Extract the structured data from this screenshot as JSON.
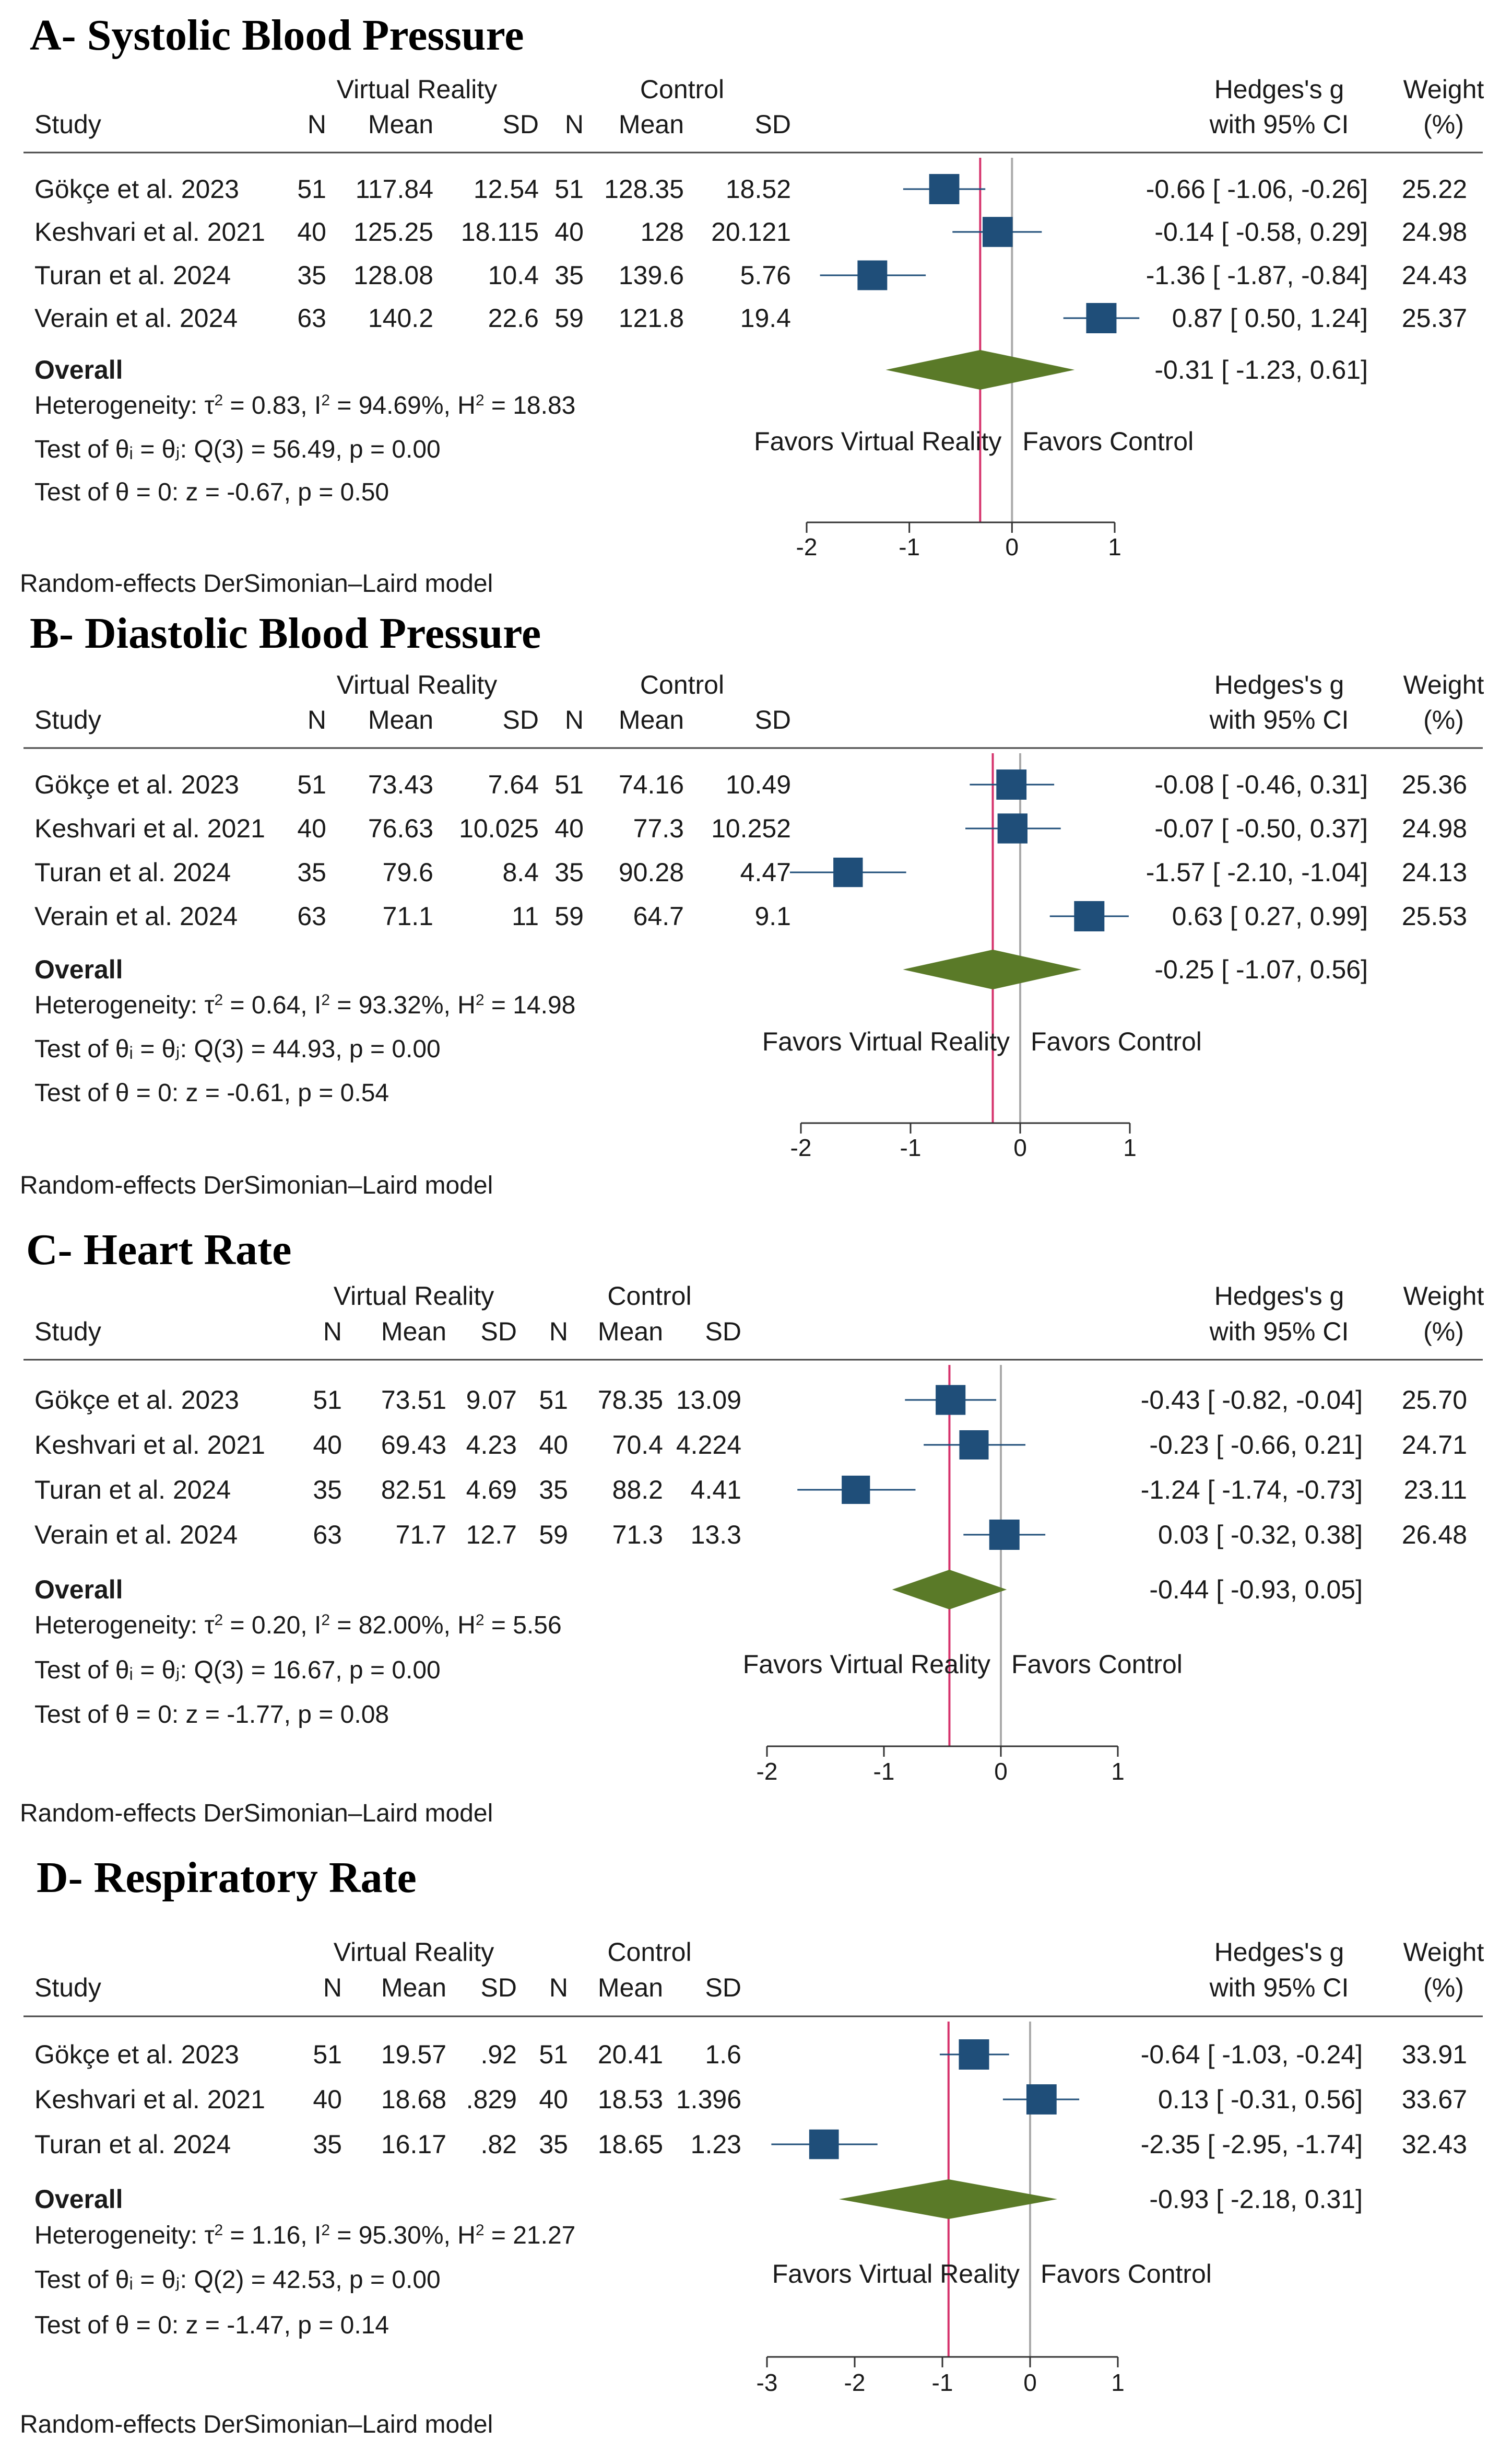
{
  "chart_data": [
    {
      "type": "forest",
      "title": "A- Systolic Blood Pressure",
      "xlim": [
        -2,
        1
      ],
      "xticks": [
        -2,
        -1,
        0,
        1
      ],
      "favors_left": "Favors Virtual Reality",
      "favors_right": "Favors Control",
      "group_vr": "Virtual Reality",
      "group_ctrl": "Control",
      "col_study": "Study",
      "col_n": "N",
      "col_mean": "Mean",
      "col_sd": "SD",
      "col_es1": "Hedges's g",
      "col_es2": "with 95% CI",
      "col_w1": "Weight",
      "col_w2": "(%)",
      "studies": [
        {
          "name": "Gökçe et al. 2023",
          "vr_n": "51",
          "vr_mean": "117.84",
          "vr_sd": "12.54",
          "c_n": "51",
          "c_mean": "128.35",
          "c_sd": "18.52",
          "ci_text": "-0.66 [ -1.06,  -0.26]",
          "weight_text": "25.22",
          "g": -0.66,
          "lo": -1.06,
          "hi": -0.26,
          "w": 25.22
        },
        {
          "name": "Keshvari et al. 2021",
          "vr_n": "40",
          "vr_mean": "125.25",
          "vr_sd": "18.115",
          "c_n": "40",
          "c_mean": "128",
          "c_sd": "20.121",
          "ci_text": "-0.14 [ -0.58,   0.29]",
          "weight_text": "24.98",
          "g": -0.14,
          "lo": -0.58,
          "hi": 0.29,
          "w": 24.98
        },
        {
          "name": "Turan et al. 2024",
          "vr_n": "35",
          "vr_mean": "128.08",
          "vr_sd": "10.4",
          "c_n": "35",
          "c_mean": "139.6",
          "c_sd": "5.76",
          "ci_text": "-1.36 [ -1.87,  -0.84]",
          "weight_text": "24.43",
          "g": -1.36,
          "lo": -1.87,
          "hi": -0.84,
          "w": 24.43
        },
        {
          "name": "Verain et al. 2024",
          "vr_n": "63",
          "vr_mean": "140.2",
          "vr_sd": "22.6",
          "c_n": "59",
          "c_mean": "121.8",
          "c_sd": "19.4",
          "ci_text": "0.87 [  0.50,   1.24]",
          "weight_text": "25.37",
          "g": 0.87,
          "lo": 0.5,
          "hi": 1.24,
          "w": 25.37
        }
      ],
      "overall": {
        "label": "Overall",
        "ci_text": "-0.31 [ -1.23,   0.61]",
        "g": -0.31,
        "lo": -1.23,
        "hi": 0.61
      },
      "het_prefix": "Heterogeneity: τ",
      "het_mid1": " = 0.83, I",
      "het_mid2": " = 94.69%, H",
      "het_end": " = 18.83",
      "q_test": "Test of θᵢ = θⱼ: Q(3) = 56.49, p = 0.00",
      "z_test": "Test of θ = 0: z = -0.67, p = 0.50",
      "model": "Random-effects DerSimonian–Laird model"
    },
    {
      "type": "forest",
      "title": "B- Diastolic Blood Pressure",
      "xlim": [
        -2,
        1
      ],
      "xticks": [
        -2,
        -1,
        0,
        1
      ],
      "favors_left": "Favors Virtual Reality",
      "favors_right": "Favors Control",
      "group_vr": "Virtual Reality",
      "group_ctrl": "Control",
      "col_study": "Study",
      "col_n": "N",
      "col_mean": "Mean",
      "col_sd": "SD",
      "col_es1": "Hedges's g",
      "col_es2": "with 95% CI",
      "col_w1": "Weight",
      "col_w2": "(%)",
      "studies": [
        {
          "name": "Gökçe et al. 2023",
          "vr_n": "51",
          "vr_mean": "73.43",
          "vr_sd": "7.64",
          "c_n": "51",
          "c_mean": "74.16",
          "c_sd": "10.49",
          "ci_text": "-0.08 [ -0.46,   0.31]",
          "weight_text": "25.36",
          "g": -0.08,
          "lo": -0.46,
          "hi": 0.31,
          "w": 25.36
        },
        {
          "name": "Keshvari et al. 2021",
          "vr_n": "40",
          "vr_mean": "76.63",
          "vr_sd": "10.025",
          "c_n": "40",
          "c_mean": "77.3",
          "c_sd": "10.252",
          "ci_text": "-0.07 [ -0.50,   0.37]",
          "weight_text": "24.98",
          "g": -0.07,
          "lo": -0.5,
          "hi": 0.37,
          "w": 24.98
        },
        {
          "name": "Turan et al. 2024",
          "vr_n": "35",
          "vr_mean": "79.6",
          "vr_sd": "8.4",
          "c_n": "35",
          "c_mean": "90.28",
          "c_sd": "4.47",
          "ci_text": "-1.57 [ -2.10,  -1.04]",
          "weight_text": "24.13",
          "g": -1.57,
          "lo": -2.1,
          "hi": -1.04,
          "w": 24.13
        },
        {
          "name": "Verain et al. 2024",
          "vr_n": "63",
          "vr_mean": "71.1",
          "vr_sd": "11",
          "c_n": "59",
          "c_mean": "64.7",
          "c_sd": "9.1",
          "ci_text": "0.63 [  0.27,   0.99]",
          "weight_text": "25.53",
          "g": 0.63,
          "lo": 0.27,
          "hi": 0.99,
          "w": 25.53
        }
      ],
      "overall": {
        "label": "Overall",
        "ci_text": "-0.25 [ -1.07,   0.56]",
        "g": -0.25,
        "lo": -1.07,
        "hi": 0.56
      },
      "het_prefix": "Heterogeneity: τ",
      "het_mid1": " = 0.64, I",
      "het_mid2": " = 93.32%, H",
      "het_end": " = 14.98",
      "q_test": "Test of θᵢ = θⱼ: Q(3) = 44.93, p = 0.00",
      "z_test": "Test of θ = 0: z = -0.61, p = 0.54",
      "model": "Random-effects DerSimonian–Laird model"
    },
    {
      "type": "forest",
      "title": "C- Heart Rate",
      "xlim": [
        -2,
        1
      ],
      "xticks": [
        -2,
        -1,
        0,
        1
      ],
      "favors_left": "Favors Virtual Reality",
      "favors_right": "Favors Control",
      "group_vr": "Virtual Reality",
      "group_ctrl": "Control",
      "col_study": "Study",
      "col_n": "N",
      "col_mean": "Mean",
      "col_sd": "SD",
      "col_es1": "Hedges's g",
      "col_es2": "with 95% CI",
      "col_w1": "Weight",
      "col_w2": "(%)",
      "studies": [
        {
          "name": "Gökçe et al. 2023",
          "vr_n": "51",
          "vr_mean": "73.51",
          "vr_sd": "9.07",
          "c_n": "51",
          "c_mean": "78.35",
          "c_sd": "13.09",
          "ci_text": "-0.43 [ -0.82,  -0.04]",
          "weight_text": "25.70",
          "g": -0.43,
          "lo": -0.82,
          "hi": -0.04,
          "w": 25.7
        },
        {
          "name": "Keshvari et al. 2021",
          "vr_n": "40",
          "vr_mean": "69.43",
          "vr_sd": "4.23",
          "c_n": "40",
          "c_mean": "70.4",
          "c_sd": "4.224",
          "ci_text": "-0.23 [ -0.66,   0.21]",
          "weight_text": "24.71",
          "g": -0.23,
          "lo": -0.66,
          "hi": 0.21,
          "w": 24.71
        },
        {
          "name": "Turan et al. 2024",
          "vr_n": "35",
          "vr_mean": "82.51",
          "vr_sd": "4.69",
          "c_n": "35",
          "c_mean": "88.2",
          "c_sd": "4.41",
          "ci_text": "-1.24 [ -1.74,  -0.73]",
          "weight_text": "23.11",
          "g": -1.24,
          "lo": -1.74,
          "hi": -0.73,
          "w": 23.11
        },
        {
          "name": "Verain et al. 2024",
          "vr_n": "63",
          "vr_mean": "71.7",
          "vr_sd": "12.7",
          "c_n": "59",
          "c_mean": "71.3",
          "c_sd": "13.3",
          "ci_text": "0.03 [ -0.32,   0.38]",
          "weight_text": "26.48",
          "g": 0.03,
          "lo": -0.32,
          "hi": 0.38,
          "w": 26.48
        }
      ],
      "overall": {
        "label": "Overall",
        "ci_text": "-0.44 [ -0.93,   0.05]",
        "g": -0.44,
        "lo": -0.93,
        "hi": 0.05
      },
      "het_prefix": "Heterogeneity: τ",
      "het_mid1": " = 0.20, I",
      "het_mid2": " = 82.00%, H",
      "het_end": " = 5.56",
      "q_test": "Test of θᵢ = θⱼ: Q(3) = 16.67, p = 0.00",
      "z_test": "Test of θ = 0: z = -1.77, p = 0.08",
      "model": "Random-effects DerSimonian–Laird model"
    },
    {
      "type": "forest",
      "title": "D- Respiratory Rate",
      "xlim": [
        -3,
        1
      ],
      "xticks": [
        -3,
        -2,
        -1,
        0,
        1
      ],
      "favors_left": "Favors Virtual Reality",
      "favors_right": "Favors Control",
      "group_vr": "Virtual Reality",
      "group_ctrl": "Control",
      "col_study": "Study",
      "col_n": "N",
      "col_mean": "Mean",
      "col_sd": "SD",
      "col_es1": "Hedges's g",
      "col_es2": "with 95% CI",
      "col_w1": "Weight",
      "col_w2": "(%)",
      "studies": [
        {
          "name": "Gökçe et al. 2023",
          "vr_n": "51",
          "vr_mean": "19.57",
          "vr_sd": ".92",
          "c_n": "51",
          "c_mean": "20.41",
          "c_sd": "1.6",
          "ci_text": "-0.64 [ -1.03,  -0.24]",
          "weight_text": "33.91",
          "g": -0.64,
          "lo": -1.03,
          "hi": -0.24,
          "w": 33.91
        },
        {
          "name": "Keshvari et al. 2021",
          "vr_n": "40",
          "vr_mean": "18.68",
          "vr_sd": ".829",
          "c_n": "40",
          "c_mean": "18.53",
          "c_sd": "1.396",
          "ci_text": "0.13 [ -0.31,   0.56]",
          "weight_text": "33.67",
          "g": 0.13,
          "lo": -0.31,
          "hi": 0.56,
          "w": 33.67
        },
        {
          "name": "Turan et al. 2024",
          "vr_n": "35",
          "vr_mean": "16.17",
          "vr_sd": ".82",
          "c_n": "35",
          "c_mean": "18.65",
          "c_sd": "1.23",
          "ci_text": "-2.35 [ -2.95,  -1.74]",
          "weight_text": "32.43",
          "g": -2.35,
          "lo": -2.95,
          "hi": -1.74,
          "w": 32.43
        }
      ],
      "overall": {
        "label": "Overall",
        "ci_text": "-0.93 [ -2.18,   0.31]",
        "g": -0.93,
        "lo": -2.18,
        "hi": 0.31
      },
      "het_prefix": "Heterogeneity: τ",
      "het_mid1": " = 1.16, I",
      "het_mid2": " = 95.30%, H",
      "het_end": " = 21.27",
      "q_test": "Test of θᵢ = θⱼ: Q(2) = 42.53, p = 0.00",
      "z_test": "Test of θ = 0: z = -1.47, p = 0.14",
      "model": "Random-effects DerSimonian–Laird model"
    }
  ],
  "colors": {
    "marker": "#1f4e79",
    "diamond": "#5a7a28",
    "overall_line": "#d6336c",
    "null_line": "#aaaaaa",
    "text": "#1a1a1a"
  }
}
